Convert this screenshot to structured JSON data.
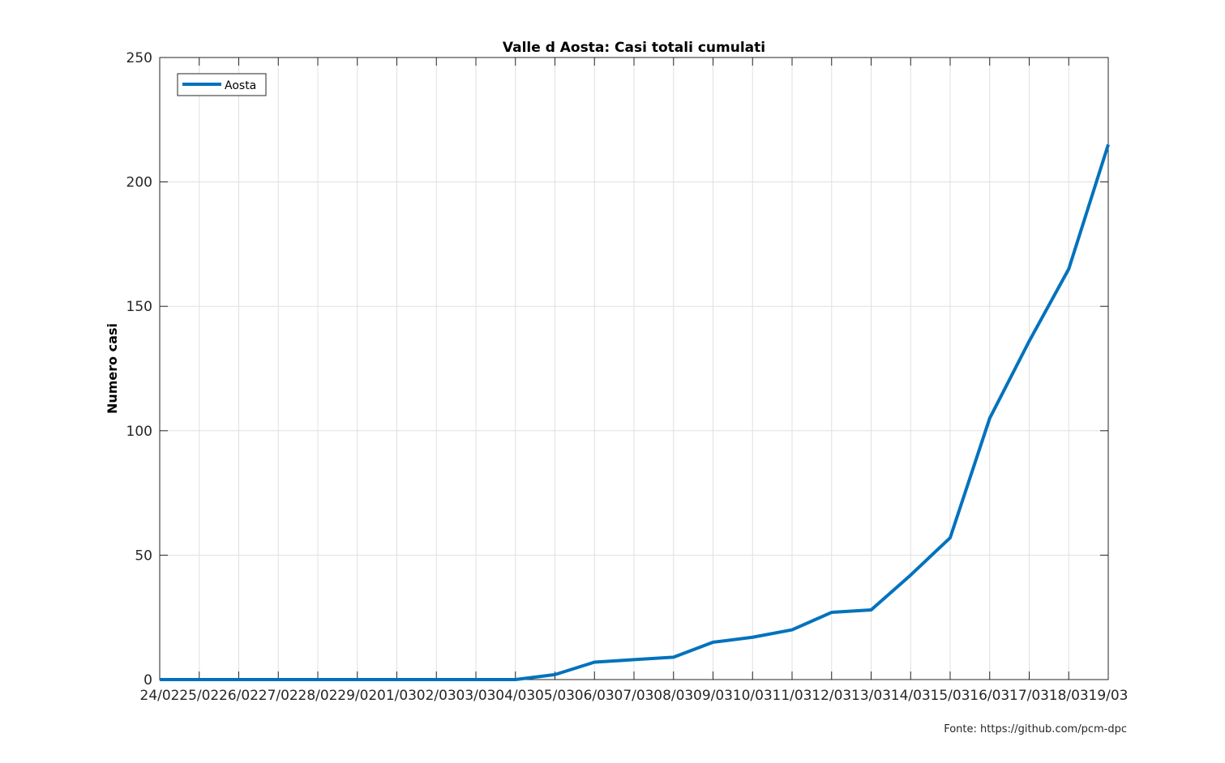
{
  "source_note": "Fonte: https://github.com/pcm-dpc",
  "chart_data": {
    "type": "line",
    "title": "Valle d Aosta: Casi totali cumulati",
    "xlabel": "",
    "ylabel": "Numero casi",
    "categories": [
      "24/02",
      "25/02",
      "26/02",
      "27/02",
      "28/02",
      "29/02",
      "01/03",
      "02/03",
      "03/03",
      "04/03",
      "05/03",
      "06/03",
      "07/03",
      "08/03",
      "09/03",
      "10/03",
      "11/03",
      "12/03",
      "13/03",
      "14/03",
      "15/03",
      "16/03",
      "17/03",
      "18/03",
      "19/03"
    ],
    "series": [
      {
        "name": "Aosta",
        "color": "#0072bd",
        "values": [
          0,
          0,
          0,
          0,
          0,
          0,
          0,
          0,
          0,
          0,
          2,
          7,
          8,
          9,
          15,
          17,
          20,
          27,
          28,
          42,
          57,
          105,
          136,
          165,
          215
        ]
      }
    ],
    "ylim": [
      0,
      250
    ],
    "yticks": [
      0,
      50,
      100,
      150,
      200,
      250
    ],
    "grid": true,
    "legend_position": "top-left"
  }
}
